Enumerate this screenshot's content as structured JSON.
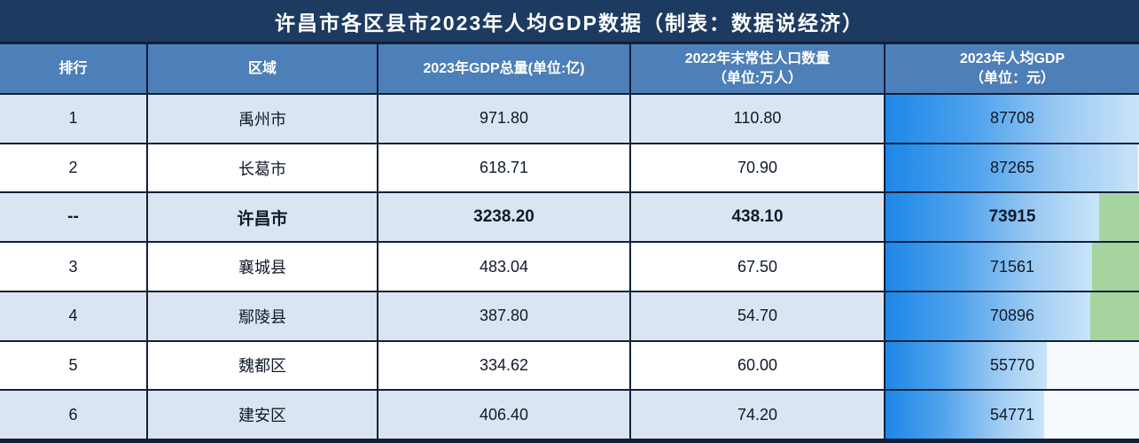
{
  "title": "许昌市各区县市2023年人均GDP数据（制表：数据说经济）",
  "columns": [
    {
      "key": "rank",
      "label": "排行"
    },
    {
      "key": "region",
      "label": "区域"
    },
    {
      "key": "gdp",
      "label": "2023年GDP总量(单位:亿)"
    },
    {
      "key": "pop",
      "label_line1": "2022年末常住人口数量",
      "label_line2": "（单位:万人）"
    },
    {
      "key": "percap",
      "label_line1": "2023年人均GDP",
      "label_line2": "（单位：元）"
    }
  ],
  "rows": [
    {
      "rank": "1",
      "region": "禹州市",
      "gdp": "971.80",
      "pop": "110.80",
      "percap": "87708",
      "bar_pct": 100,
      "remainder_color": null,
      "bold": false
    },
    {
      "rank": "2",
      "region": "长葛市",
      "gdp": "618.71",
      "pop": "70.90",
      "percap": "87265",
      "bar_pct": 99.5,
      "remainder_color": null,
      "bold": false
    },
    {
      "rank": "--",
      "region": "许昌市",
      "gdp": "3238.20",
      "pop": "438.10",
      "percap": "73915",
      "bar_pct": 84.3,
      "remainder_color": "#a6d49f",
      "bold": true
    },
    {
      "rank": "3",
      "region": "襄城县",
      "gdp": "483.04",
      "pop": "67.50",
      "percap": "71561",
      "bar_pct": 81.6,
      "remainder_color": "#a6d49f",
      "bold": false
    },
    {
      "rank": "4",
      "region": "鄢陵县",
      "gdp": "387.80",
      "pop": "54.70",
      "percap": "70896",
      "bar_pct": 80.8,
      "remainder_color": "#a6d49f",
      "bold": false
    },
    {
      "rank": "5",
      "region": "魏都区",
      "gdp": "334.62",
      "pop": "60.00",
      "percap": "55770",
      "bar_pct": 63.6,
      "remainder_color": "#f6fafd",
      "bold": false
    },
    {
      "rank": "6",
      "region": "建安区",
      "gdp": "406.40",
      "pop": "74.20",
      "percap": "54771",
      "bar_pct": 62.5,
      "remainder_color": "#f6fafd",
      "bold": false
    }
  ],
  "colors": {
    "title_bg": "#1d3a61",
    "header_bg": "#4d7fb9",
    "row_alt_bg": "#dbe5f1",
    "row_bg": "#ffffff",
    "grid_line": "#12203a",
    "bar_blue_start": "#1d87e8",
    "bar_blue_end": "#c9e4f8",
    "bar_green": "#a6d49f",
    "bar_rest_light": "#f6fafd",
    "header_text": "#ffffff",
    "body_text": "#0f1a2b"
  },
  "chart_data": {
    "type": "table",
    "title": "许昌市各区县市2023年人均GDP数据（制表：数据说经济）",
    "columns": [
      "排行",
      "区域",
      "2023年GDP总量(单位:亿)",
      "2022年末常住人口数量（单位:万人）",
      "2023年人均GDP（单位：元）"
    ],
    "rows": [
      [
        "1",
        "禹州市",
        971.8,
        110.8,
        87708
      ],
      [
        "2",
        "长葛市",
        618.71,
        70.9,
        87265
      ],
      [
        "--",
        "许昌市",
        3238.2,
        438.1,
        73915
      ],
      [
        "3",
        "襄城县",
        483.04,
        67.5,
        71561
      ],
      [
        "4",
        "鄢陵县",
        387.8,
        54.7,
        70896
      ],
      [
        "5",
        "魏都区",
        334.62,
        60.0,
        55770
      ],
      [
        "6",
        "建安区",
        406.4,
        74.2,
        54771
      ]
    ],
    "databar": {
      "column": "2023年人均GDP（单位：元）",
      "max": 87708,
      "style": "blue-gradient",
      "remainder_fill_high": "green",
      "remainder_fill_low": "white"
    },
    "layout": {
      "zebra_striping": true,
      "emphasized_row": "许昌市",
      "legend": "none",
      "grid": "on"
    }
  }
}
